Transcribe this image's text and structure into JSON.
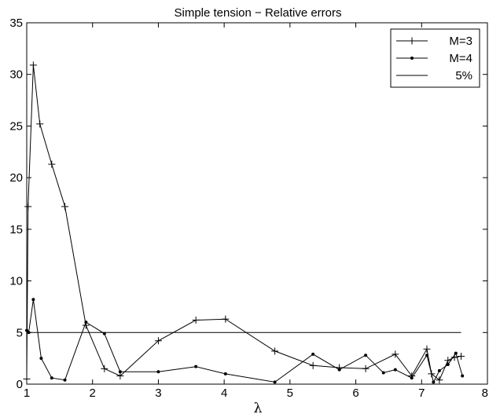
{
  "chart_data": {
    "type": "line",
    "title": "Simple tension − Relative errors",
    "xlabel": "λ",
    "ylabel": "",
    "xlim": [
      1,
      8
    ],
    "ylim": [
      0,
      35
    ],
    "xticks": [
      1,
      2,
      3,
      4,
      5,
      6,
      7,
      8
    ],
    "yticks": [
      0,
      5,
      10,
      15,
      20,
      25,
      30,
      35
    ],
    "grid": false,
    "legend_position": "top-right",
    "series": [
      {
        "name": "M=3",
        "marker": "plus",
        "x": [
          1.0,
          1.02,
          1.1,
          1.2,
          1.38,
          1.58,
          1.9,
          2.18,
          2.42,
          3.0,
          3.57,
          4.02,
          4.77,
          5.35,
          5.75,
          6.15,
          6.6,
          6.85,
          7.08,
          7.15,
          7.27,
          7.4,
          7.5,
          7.6
        ],
        "y": [
          0.5,
          17.2,
          30.9,
          25.2,
          21.3,
          17.2,
          5.7,
          1.5,
          0.8,
          4.2,
          6.2,
          6.3,
          3.2,
          1.8,
          1.6,
          1.5,
          2.9,
          0.8,
          3.4,
          1.0,
          0.4,
          2.3,
          2.6,
          2.7
        ]
      },
      {
        "name": "M=4",
        "marker": "dot",
        "x": [
          1.0,
          1.03,
          1.1,
          1.22,
          1.38,
          1.58,
          1.9,
          2.18,
          2.42,
          3.0,
          3.57,
          4.02,
          4.77,
          5.35,
          5.75,
          6.15,
          6.42,
          6.6,
          6.85,
          7.08,
          7.18,
          7.27,
          7.4,
          7.52,
          7.62
        ],
        "y": [
          5.2,
          5.0,
          8.2,
          2.5,
          0.6,
          0.4,
          6.0,
          4.9,
          1.2,
          1.2,
          1.7,
          1.0,
          0.2,
          2.9,
          1.4,
          2.8,
          1.1,
          1.4,
          0.6,
          2.8,
          0.2,
          1.3,
          1.9,
          3.0,
          0.8
        ]
      },
      {
        "name": "5%",
        "marker": "none",
        "x": [
          1,
          7.6
        ],
        "y": [
          5,
          5
        ]
      }
    ]
  }
}
